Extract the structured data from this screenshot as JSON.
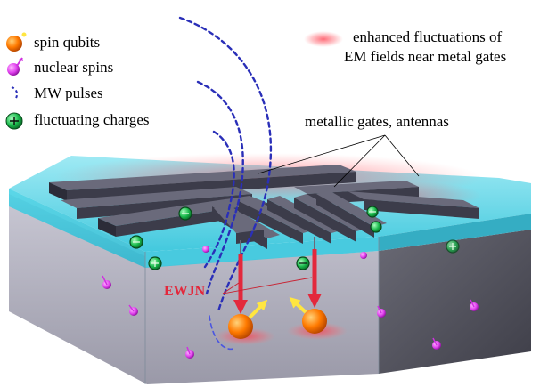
{
  "legend": {
    "items": [
      {
        "label": "spin qubits",
        "icon": "spin-qubit-icon"
      },
      {
        "label": "nuclear spins",
        "icon": "nuclear-spin-icon"
      },
      {
        "label": "MW pulses",
        "icon": "mw-pulse-icon"
      },
      {
        "label": "fluctuating charges",
        "icon": "fluctuating-charge-icon"
      }
    ],
    "em_label_line1": "enhanced fluctuations of",
    "em_label_line2": "EM fields near metal gates"
  },
  "annotations": {
    "gates_label": "metallic gates, antennas",
    "ewjn_label": "EWJN"
  },
  "colors": {
    "slab_top": "#36c6dc",
    "slab_front": "#b9b8c6",
    "slab_side": "#55555f",
    "gate": "#4d4d5e",
    "qubit": "#ff7a00",
    "nuclear": "#e040ee",
    "mw": "#2a2fb8",
    "charge": "#18b84a",
    "ewjn": "#e3283c",
    "spin_arrow": "#ffe640"
  }
}
